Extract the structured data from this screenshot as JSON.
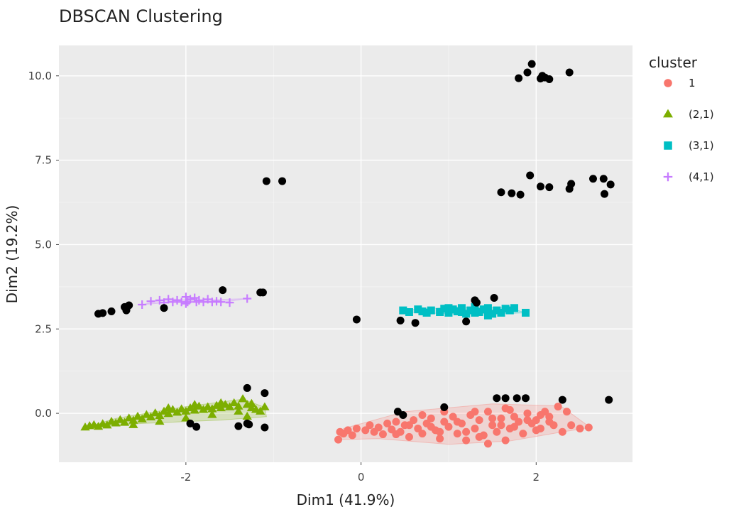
{
  "chart_data": {
    "type": "scatter",
    "title": "DBSCAN Clustering",
    "xlabel": "Dim1 (41.9%)",
    "ylabel": "Dim2 (19.2%)",
    "xlim": [
      -3.45,
      3.1
    ],
    "ylim": [
      -1.45,
      10.9
    ],
    "x_ticks": [
      -2,
      0,
      2
    ],
    "y_ticks": [
      0,
      2.5,
      5,
      7.5,
      10
    ],
    "x_tick_labels": [
      "-2",
      "0",
      "2"
    ],
    "y_tick_labels": [
      "0.0",
      "2.5",
      "5.0",
      "7.5",
      "10.0"
    ],
    "grid": true,
    "legend": {
      "title": "cluster",
      "position": "right",
      "entries": [
        {
          "label": "1",
          "color": "#F8766D",
          "shape": "circle"
        },
        {
          "label": "(2,1)",
          "color": "#7CAE00",
          "shape": "triangle"
        },
        {
          "label": "(3,1)",
          "color": "#00BFC4",
          "shape": "square"
        },
        {
          "label": "(4,1)",
          "color": "#C77CFF",
          "shape": "plus"
        }
      ]
    },
    "noise_color": "#000000",
    "clusters": [
      {
        "label": "1",
        "color": "#F8766D",
        "shape": "circle",
        "hull": [
          [
            -0.26,
            -0.78
          ],
          [
            0.2,
            -0.75
          ],
          [
            1.0,
            -0.92
          ],
          [
            1.7,
            -0.82
          ],
          [
            2.3,
            -0.55
          ],
          [
            2.62,
            -0.42
          ],
          [
            2.28,
            0.22
          ],
          [
            1.5,
            0.28
          ],
          [
            0.5,
            0.05
          ],
          [
            -0.2,
            -0.45
          ]
        ],
        "points": [
          [
            -0.26,
            -0.78
          ],
          [
            -0.24,
            -0.55
          ],
          [
            -0.2,
            -0.6
          ],
          [
            -0.15,
            -0.5
          ],
          [
            -0.1,
            -0.65
          ],
          [
            -0.05,
            -0.45
          ],
          [
            0.05,
            -0.5
          ],
          [
            0.1,
            -0.35
          ],
          [
            0.15,
            -0.55
          ],
          [
            0.2,
            -0.42
          ],
          [
            0.25,
            -0.62
          ],
          [
            0.3,
            -0.3
          ],
          [
            0.35,
            -0.48
          ],
          [
            0.4,
            -0.25
          ],
          [
            0.45,
            -0.55
          ],
          [
            0.5,
            -0.35
          ],
          [
            0.55,
            -0.7
          ],
          [
            0.6,
            -0.2
          ],
          [
            0.65,
            -0.45
          ],
          [
            0.7,
            -0.6
          ],
          [
            0.75,
            -0.3
          ],
          [
            0.8,
            -0.15
          ],
          [
            0.85,
            -0.5
          ],
          [
            0.9,
            -0.75
          ],
          [
            0.95,
            -0.25
          ],
          [
            1.0,
            -0.4
          ],
          [
            1.05,
            -0.1
          ],
          [
            1.1,
            -0.6
          ],
          [
            1.15,
            -0.3
          ],
          [
            1.2,
            -0.8
          ],
          [
            1.25,
            -0.05
          ],
          [
            1.3,
            -0.45
          ],
          [
            1.35,
            -0.2
          ],
          [
            1.4,
            -0.65
          ],
          [
            1.45,
            0.05
          ],
          [
            1.5,
            -0.35
          ],
          [
            1.55,
            -0.55
          ],
          [
            1.6,
            -0.15
          ],
          [
            1.65,
            -0.8
          ],
          [
            1.7,
            0.1
          ],
          [
            1.75,
            -0.4
          ],
          [
            1.8,
            -0.25
          ],
          [
            1.85,
            -0.6
          ],
          [
            1.9,
            0.0
          ],
          [
            1.95,
            -0.3
          ],
          [
            2.0,
            -0.2
          ],
          [
            2.05,
            -0.45
          ],
          [
            2.1,
            0.05
          ],
          [
            2.15,
            -0.1
          ],
          [
            2.2,
            -0.35
          ],
          [
            2.25,
            0.2
          ],
          [
            2.3,
            -0.55
          ],
          [
            2.4,
            -0.35
          ],
          [
            2.5,
            -0.45
          ],
          [
            2.6,
            -0.42
          ],
          [
            0.55,
            -0.35
          ],
          [
            0.7,
            -0.05
          ],
          [
            0.9,
            -0.55
          ],
          [
            1.1,
            -0.25
          ],
          [
            1.3,
            0.05
          ],
          [
            1.5,
            -0.15
          ],
          [
            1.7,
            -0.45
          ],
          [
            1.9,
            -0.2
          ],
          [
            2.05,
            -0.05
          ],
          [
            0.4,
            -0.62
          ],
          [
            0.8,
            -0.4
          ],
          [
            1.2,
            -0.55
          ],
          [
            1.6,
            -0.35
          ],
          [
            2.0,
            -0.5
          ],
          [
            0.95,
            0.05
          ],
          [
            1.35,
            -0.7
          ],
          [
            1.75,
            -0.1
          ],
          [
            2.35,
            0.05
          ],
          [
            1.45,
            -0.9
          ],
          [
            1.65,
            0.15
          ],
          [
            2.15,
            -0.25
          ]
        ]
      },
      {
        "label": "(2,1)",
        "color": "#7CAE00",
        "shape": "triangle",
        "hull": [
          [
            -3.15,
            -0.42
          ],
          [
            -2.5,
            -0.3
          ],
          [
            -1.6,
            -0.2
          ],
          [
            -1.08,
            -0.1
          ],
          [
            -1.1,
            0.18
          ],
          [
            -1.35,
            0.42
          ],
          [
            -2.0,
            0.2
          ],
          [
            -2.8,
            -0.15
          ]
        ],
        "points": [
          [
            -3.15,
            -0.42
          ],
          [
            -3.1,
            -0.38
          ],
          [
            -3.05,
            -0.35
          ],
          [
            -3.0,
            -0.4
          ],
          [
            -2.95,
            -0.32
          ],
          [
            -2.9,
            -0.36
          ],
          [
            -2.85,
            -0.25
          ],
          [
            -2.8,
            -0.3
          ],
          [
            -2.75,
            -0.2
          ],
          [
            -2.7,
            -0.28
          ],
          [
            -2.65,
            -0.15
          ],
          [
            -2.6,
            -0.22
          ],
          [
            -2.55,
            -0.1
          ],
          [
            -2.5,
            -0.18
          ],
          [
            -2.45,
            -0.05
          ],
          [
            -2.4,
            -0.12
          ],
          [
            -2.35,
            0.0
          ],
          [
            -2.3,
            -0.08
          ],
          [
            -2.25,
            0.05
          ],
          [
            -2.2,
            -0.02
          ],
          [
            -2.15,
            0.1
          ],
          [
            -2.1,
            0.02
          ],
          [
            -2.05,
            0.12
          ],
          [
            -2.0,
            0.05
          ],
          [
            -1.95,
            0.15
          ],
          [
            -1.9,
            0.08
          ],
          [
            -1.85,
            0.2
          ],
          [
            -1.8,
            0.1
          ],
          [
            -1.75,
            0.18
          ],
          [
            -1.7,
            0.12
          ],
          [
            -1.65,
            0.22
          ],
          [
            -1.6,
            0.15
          ],
          [
            -1.55,
            0.25
          ],
          [
            -1.5,
            0.18
          ],
          [
            -1.45,
            0.3
          ],
          [
            -1.4,
            0.2
          ],
          [
            -1.35,
            0.42
          ],
          [
            -1.3,
            0.25
          ],
          [
            -1.25,
            0.15
          ],
          [
            -1.2,
            0.1
          ],
          [
            -1.15,
            0.05
          ],
          [
            -1.1,
            0.18
          ],
          [
            -2.6,
            -0.35
          ],
          [
            -2.3,
            -0.25
          ],
          [
            -2.0,
            -0.15
          ],
          [
            -1.7,
            -0.05
          ],
          [
            -1.4,
            0.05
          ],
          [
            -1.3,
            -0.1
          ],
          [
            -2.2,
            0.15
          ],
          [
            -1.9,
            0.25
          ],
          [
            -1.6,
            0.3
          ],
          [
            -1.25,
            0.28
          ]
        ]
      },
      {
        "label": "(3,1)",
        "color": "#00BFC4",
        "shape": "square",
        "hull": [
          [
            0.48,
            3.0
          ],
          [
            1.0,
            2.95
          ],
          [
            1.6,
            2.95
          ],
          [
            1.88,
            2.98
          ],
          [
            1.7,
            3.12
          ],
          [
            1.1,
            3.15
          ],
          [
            0.6,
            3.08
          ]
        ],
        "points": [
          [
            0.48,
            3.05
          ],
          [
            0.55,
            3.0
          ],
          [
            0.65,
            3.08
          ],
          [
            0.75,
            2.98
          ],
          [
            0.8,
            3.05
          ],
          [
            0.9,
            3.0
          ],
          [
            0.95,
            3.1
          ],
          [
            1.0,
            2.98
          ],
          [
            1.05,
            3.08
          ],
          [
            1.1,
            3.02
          ],
          [
            1.15,
            3.12
          ],
          [
            1.2,
            2.95
          ],
          [
            1.25,
            3.05
          ],
          [
            1.3,
            3.15
          ],
          [
            1.35,
            3.0
          ],
          [
            1.4,
            3.08
          ],
          [
            1.45,
            3.12
          ],
          [
            1.5,
            2.95
          ],
          [
            1.55,
            3.05
          ],
          [
            1.6,
            2.98
          ],
          [
            1.65,
            3.1
          ],
          [
            1.7,
            3.05
          ],
          [
            1.75,
            3.12
          ],
          [
            1.88,
            2.98
          ],
          [
            0.7,
            3.02
          ],
          [
            1.0,
            3.12
          ],
          [
            1.3,
            2.98
          ],
          [
            1.45,
            2.9
          ],
          [
            1.15,
            3.0
          ]
        ]
      },
      {
        "label": "(4,1)",
        "color": "#C77CFF",
        "shape": "plus",
        "hull": [
          [
            -2.5,
            3.22
          ],
          [
            -1.9,
            3.35
          ],
          [
            -1.3,
            3.4
          ],
          [
            -1.6,
            3.28
          ],
          [
            -2.2,
            3.4
          ]
        ],
        "points": [
          [
            -2.5,
            3.22
          ],
          [
            -2.4,
            3.32
          ],
          [
            -2.3,
            3.35
          ],
          [
            -2.25,
            3.28
          ],
          [
            -2.2,
            3.38
          ],
          [
            -2.15,
            3.3
          ],
          [
            -2.1,
            3.35
          ],
          [
            -2.05,
            3.3
          ],
          [
            -2.0,
            3.45
          ],
          [
            -1.98,
            3.3
          ],
          [
            -1.95,
            3.38
          ],
          [
            -1.9,
            3.42
          ],
          [
            -1.88,
            3.3
          ],
          [
            -1.85,
            3.35
          ],
          [
            -1.8,
            3.3
          ],
          [
            -1.75,
            3.38
          ],
          [
            -1.7,
            3.3
          ],
          [
            -1.65,
            3.32
          ],
          [
            -1.6,
            3.3
          ],
          [
            -1.5,
            3.28
          ],
          [
            -1.3,
            3.4
          ],
          [
            -2.0,
            3.25
          ]
        ]
      }
    ],
    "noise_points": [
      [
        1.8,
        9.93
      ],
      [
        1.9,
        10.1
      ],
      [
        1.95,
        10.35
      ],
      [
        2.05,
        9.92
      ],
      [
        2.07,
        10.0
      ],
      [
        2.1,
        9.95
      ],
      [
        2.15,
        9.9
      ],
      [
        2.38,
        10.1
      ],
      [
        1.6,
        6.55
      ],
      [
        1.72,
        6.52
      ],
      [
        1.82,
        6.48
      ],
      [
        1.93,
        7.05
      ],
      [
        2.05,
        6.72
      ],
      [
        2.15,
        6.7
      ],
      [
        2.38,
        6.65
      ],
      [
        2.4,
        6.8
      ],
      [
        2.65,
        6.95
      ],
      [
        2.77,
        6.95
      ],
      [
        2.78,
        6.5
      ],
      [
        2.85,
        6.78
      ],
      [
        -1.08,
        6.88
      ],
      [
        -0.9,
        6.88
      ],
      [
        -3.0,
        2.95
      ],
      [
        -2.95,
        2.97
      ],
      [
        -2.85,
        3.02
      ],
      [
        -2.7,
        3.15
      ],
      [
        -2.68,
        3.05
      ],
      [
        -2.65,
        3.2
      ],
      [
        -2.68,
        3.1
      ],
      [
        -2.25,
        3.12
      ],
      [
        -1.58,
        3.65
      ],
      [
        -1.15,
        3.58
      ],
      [
        -1.12,
        3.58
      ],
      [
        -0.05,
        2.78
      ],
      [
        0.45,
        2.75
      ],
      [
        0.62,
        2.68
      ],
      [
        1.2,
        2.72
      ],
      [
        1.3,
        3.35
      ],
      [
        1.32,
        3.28
      ],
      [
        1.52,
        3.42
      ],
      [
        -1.3,
        0.75
      ],
      [
        -1.1,
        0.6
      ],
      [
        -1.95,
        -0.3
      ],
      [
        -1.88,
        -0.4
      ],
      [
        -1.4,
        -0.38
      ],
      [
        -1.3,
        -0.3
      ],
      [
        -1.28,
        -0.33
      ],
      [
        -1.1,
        -0.42
      ],
      [
        0.42,
        0.05
      ],
      [
        0.48,
        -0.05
      ],
      [
        0.95,
        0.18
      ],
      [
        1.55,
        0.45
      ],
      [
        1.65,
        0.45
      ],
      [
        1.78,
        0.45
      ],
      [
        1.88,
        0.45
      ],
      [
        2.3,
        0.4
      ],
      [
        2.83,
        0.4
      ]
    ]
  }
}
